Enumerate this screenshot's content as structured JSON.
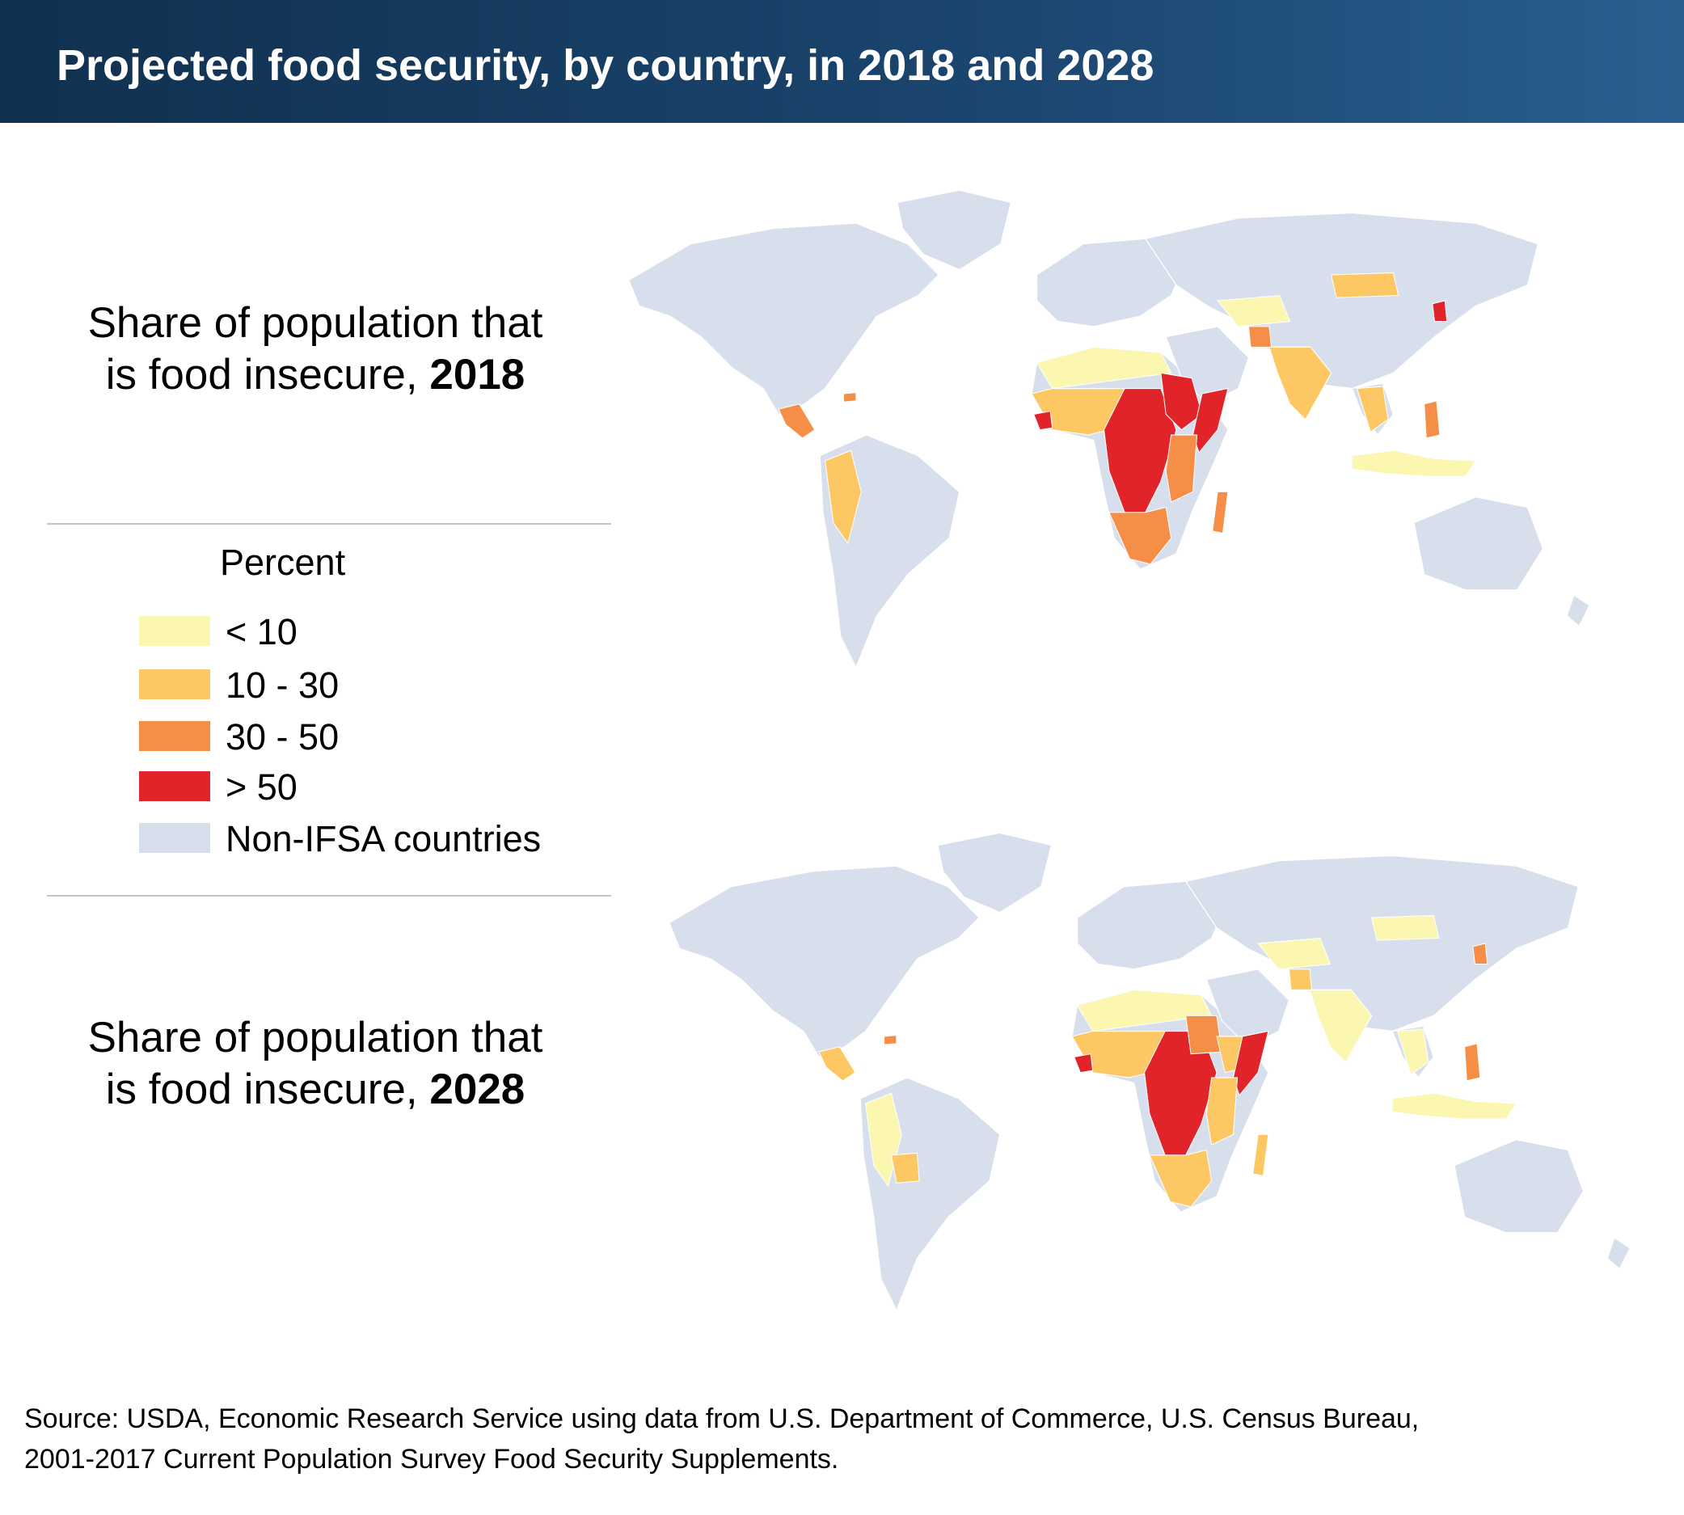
{
  "title": "Projected food security, by country, in 2018 and 2028",
  "panels": [
    {
      "label_line1": "Share of population that",
      "label_line2": "is food insecure,",
      "year": "2018"
    },
    {
      "label_line1": "Share of population that",
      "label_line2": "is food insecure,",
      "year": "2028"
    }
  ],
  "legend": {
    "title": "Percent",
    "items": [
      {
        "label": "< 10",
        "color": "#fbf6b0"
      },
      {
        "label": "10 - 30",
        "color": "#fdc863"
      },
      {
        "label": "30 - 50",
        "color": "#f58e46"
      },
      {
        "label": "> 50",
        "color": "#e1232a"
      },
      {
        "label": "Non-IFSA countries",
        "color": "#d8dfec"
      }
    ]
  },
  "map_colors": {
    "ocean": "#ffffff",
    "non_ifsa": "#d8dfec",
    "border": "#ffffff"
  },
  "chart_data": {
    "type": "choropleth",
    "bins": [
      "< 10",
      "10 - 30",
      "30 - 50",
      "> 50",
      "Non-IFSA countries"
    ],
    "maps": [
      {
        "year": "2018",
        "regions": [
          {
            "region": "North Africa",
            "bin": "< 10"
          },
          {
            "region": "Sahel / West Africa",
            "bin": "10 - 30"
          },
          {
            "region": "Sierra Leone / Liberia",
            "bin": "> 50"
          },
          {
            "region": "Central Africa",
            "bin": "> 50"
          },
          {
            "region": "East Africa (Ethiopia/Sudan)",
            "bin": "> 50"
          },
          {
            "region": "Somalia",
            "bin": "> 50"
          },
          {
            "region": "Kenya / Tanzania",
            "bin": "30 - 50"
          },
          {
            "region": "Southern Africa",
            "bin": "30 - 50"
          },
          {
            "region": "Madagascar",
            "bin": "30 - 50"
          },
          {
            "region": "Afghanistan",
            "bin": "30 - 50"
          },
          {
            "region": "South Asia",
            "bin": "10 - 30"
          },
          {
            "region": "Central Asia",
            "bin": "< 10"
          },
          {
            "region": "Mongolia",
            "bin": "10 - 30"
          },
          {
            "region": "North Korea",
            "bin": "> 50"
          },
          {
            "region": "Indochina",
            "bin": "10 - 30"
          },
          {
            "region": "Philippines",
            "bin": "30 - 50"
          },
          {
            "region": "Indonesia",
            "bin": "< 10"
          },
          {
            "region": "Central America",
            "bin": "30 - 50"
          },
          {
            "region": "Haiti",
            "bin": "30 - 50"
          },
          {
            "region": "Andean South America",
            "bin": "10 - 30"
          }
        ]
      },
      {
        "year": "2028",
        "regions": [
          {
            "region": "North Africa",
            "bin": "< 10"
          },
          {
            "region": "Sahel / West Africa",
            "bin": "10 - 30"
          },
          {
            "region": "Sierra Leone / Liberia",
            "bin": "> 50"
          },
          {
            "region": "Central Africa",
            "bin": "> 50"
          },
          {
            "region": "Sudan",
            "bin": "30 - 50"
          },
          {
            "region": "Ethiopia",
            "bin": "10 - 30"
          },
          {
            "region": "Somalia",
            "bin": "> 50"
          },
          {
            "region": "Kenya / Tanzania",
            "bin": "10 - 30"
          },
          {
            "region": "Southern Africa",
            "bin": "10 - 30"
          },
          {
            "region": "Madagascar",
            "bin": "10 - 30"
          },
          {
            "region": "Afghanistan",
            "bin": "10 - 30"
          },
          {
            "region": "South Asia",
            "bin": "< 10"
          },
          {
            "region": "Central Asia",
            "bin": "< 10"
          },
          {
            "region": "Mongolia",
            "bin": "< 10"
          },
          {
            "region": "North Korea",
            "bin": "30 - 50"
          },
          {
            "region": "Indochina",
            "bin": "< 10"
          },
          {
            "region": "Philippines",
            "bin": "30 - 50"
          },
          {
            "region": "Indonesia",
            "bin": "< 10"
          },
          {
            "region": "Central America",
            "bin": "10 - 30"
          },
          {
            "region": "Haiti",
            "bin": "30 - 50"
          },
          {
            "region": "Andean South America",
            "bin": "< 10"
          },
          {
            "region": "Bolivia",
            "bin": "10 - 30"
          }
        ]
      }
    ]
  },
  "source": {
    "line1": "Source: USDA, Economic Research Service using data from U.S. Department of Commerce, U.S. Census Bureau,",
    "line2": "2001-2017 Current Population Survey Food Security Supplements."
  }
}
